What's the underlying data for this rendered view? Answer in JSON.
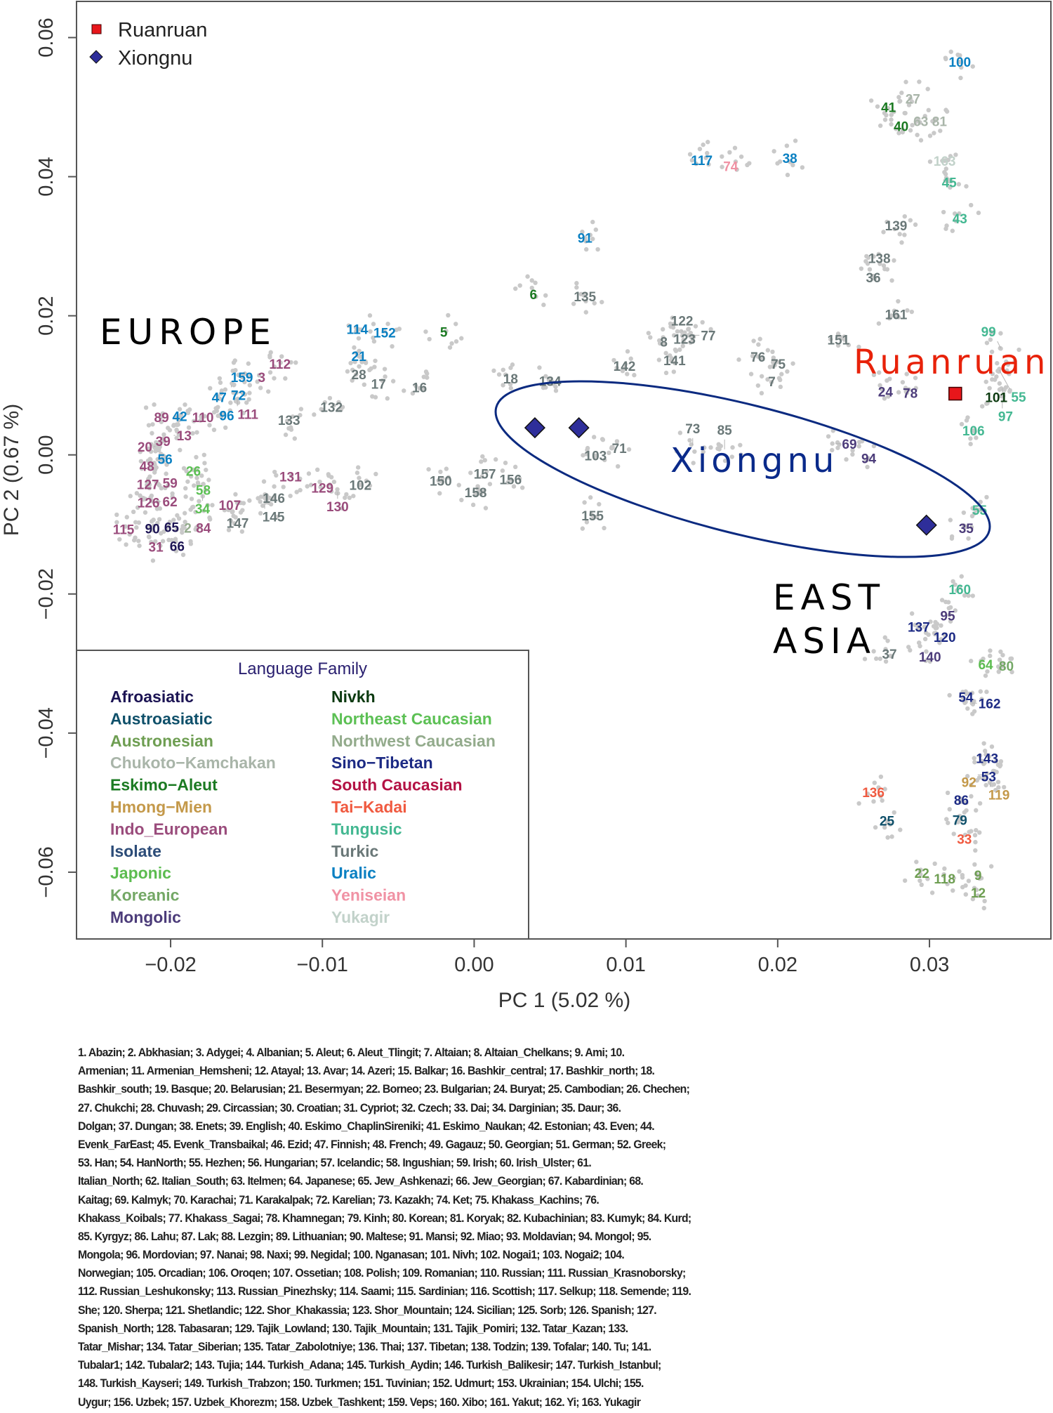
{
  "chart_data": {
    "type": "scatter",
    "xlabel": "PC 1 (5.02 %)",
    "ylabel": "PC 2 (0.67 %)",
    "xlim": [
      -0.0262,
      0.038
    ],
    "ylim": [
      -0.0696,
      0.0652
    ],
    "grid": false,
    "x_ticks": [
      -0.02,
      -0.01,
      0.0,
      0.01,
      0.02,
      0.03
    ],
    "x_tick_labels": [
      "−0.02",
      "−0.01",
      "0.00",
      "0.01",
      "0.02",
      "0.03"
    ],
    "y_ticks": [
      0.06,
      0.04,
      0.02,
      0.0,
      -0.02,
      -0.04,
      -0.06
    ],
    "y_tick_labels": [
      "0.06",
      "0.04",
      "0.02",
      "0.00",
      "−0.02",
      "−0.04",
      "−0.06"
    ],
    "marker_legend": {
      "placement": "top-left",
      "entries": [
        {
          "name": "Ruanruan",
          "shape": "square",
          "color": "#e8161b"
        },
        {
          "name": "Xiongnu",
          "shape": "diamond",
          "color": "#2e2e9a"
        }
      ]
    },
    "samples": [
      {
        "group": "Ruanruan",
        "x": 0.0317,
        "y": 0.0088
      },
      {
        "group": "Xiongnu",
        "x": 0.004,
        "y": 0.0039
      },
      {
        "group": "Xiongnu",
        "x": 0.0069,
        "y": 0.0039
      },
      {
        "group": "Xiongnu",
        "x": 0.0298,
        "y": -0.0101
      }
    ],
    "annotations": [
      {
        "text": "EUROPE",
        "color": "#000000"
      },
      {
        "text": "Ruanruan",
        "color": "#e8220a"
      },
      {
        "text": "Xiongnu",
        "color": "#0a2a8a"
      },
      {
        "text": "EAST",
        "color": "#000000"
      },
      {
        "text": "ASIA",
        "color": "#000000"
      }
    ],
    "family_legend": {
      "title": "Language Family",
      "placement": "bottom-left",
      "families": [
        {
          "name": "Afroasiatic",
          "color": "#1c1454"
        },
        {
          "name": "Austroasiatic",
          "color": "#0f506a"
        },
        {
          "name": "Austronesian",
          "color": "#6e9e52"
        },
        {
          "name": "Chukoto−Kamchakan",
          "color": "#a9b5a9"
        },
        {
          "name": "Eskimo−Aleut",
          "color": "#1b7a22"
        },
        {
          "name": "Hmong−Mien",
          "color": "#c4994a"
        },
        {
          "name": "Indo_European",
          "color": "#9a4c7c"
        },
        {
          "name": "Isolate",
          "color": "#2c4c78"
        },
        {
          "name": "Japonic",
          "color": "#5cbc50"
        },
        {
          "name": "Koreanic",
          "color": "#74a866"
        },
        {
          "name": "Mongolic",
          "color": "#4c3c7a"
        },
        {
          "name": "Nivkh",
          "color": "#0c3a10"
        },
        {
          "name": "Northeast Caucasian",
          "color": "#5cc054"
        },
        {
          "name": "Northwest Caucasian",
          "color": "#93ab8c"
        },
        {
          "name": "Sino−Tibetan",
          "color": "#1c2a84"
        },
        {
          "name": "South Caucasian",
          "color": "#b31244"
        },
        {
          "name": "Tai−Kadai",
          "color": "#f05a40"
        },
        {
          "name": "Tungusic",
          "color": "#44b892"
        },
        {
          "name": "Turkic",
          "color": "#6a7878"
        },
        {
          "name": "Uralic",
          "color": "#0a80c2"
        },
        {
          "name": "Yeniseian",
          "color": "#f092a4"
        },
        {
          "name": "Yukagir",
          "color": "#c2d2ca"
        }
      ]
    },
    "population_labels": [
      {
        "id": "100",
        "family": "Uralic",
        "x": 0.032,
        "y": 0.0565
      },
      {
        "id": "27",
        "family": "Chukoto−Kamchakan",
        "x": 0.0289,
        "y": 0.0512
      },
      {
        "id": "41",
        "family": "Eskimo−Aleut",
        "x": 0.0273,
        "y": 0.05
      },
      {
        "id": "40",
        "family": "Eskimo−Aleut",
        "x": 0.0279,
        "y": 0.048
      },
      {
        "id": "63",
        "family": "Chukoto−Kamchakan",
        "x": 0.0292,
        "y": 0.048
      },
      {
        "id": "81",
        "family": "Chukoto−Kamchakan",
        "x": 0.0302,
        "y": 0.048
      },
      {
        "id": "163",
        "family": "Yukagir",
        "x": 0.031,
        "y": 0.0423
      },
      {
        "id": "45",
        "family": "Tungusic",
        "x": 0.0313,
        "y": 0.0392
      },
      {
        "id": "43",
        "family": "Tungusic",
        "x": 0.032,
        "y": 0.034
      },
      {
        "id": "139",
        "family": "Turkic",
        "x": 0.0278,
        "y": 0.033
      },
      {
        "id": "138",
        "family": "Turkic",
        "x": 0.0267,
        "y": 0.0283
      },
      {
        "id": "36",
        "family": "Turkic",
        "x": 0.0263,
        "y": 0.0255
      },
      {
        "id": "161",
        "family": "Turkic",
        "x": 0.0278,
        "y": 0.0202
      },
      {
        "id": "151",
        "family": "Turkic",
        "x": 0.0242,
        "y": 0.0168
      },
      {
        "id": "117",
        "family": "Uralic",
        "x": 0.015,
        "y": 0.0424
      },
      {
        "id": "74",
        "family": "Yeniseian",
        "x": 0.0169,
        "y": 0.0415
      },
      {
        "id": "38",
        "family": "Uralic",
        "x": 0.0208,
        "y": 0.0427
      },
      {
        "id": "91",
        "family": "Uralic",
        "x": 0.0073,
        "y": 0.0312
      },
      {
        "id": "6",
        "family": "Eskimo−Aleut",
        "x": 0.0039,
        "y": 0.0231
      },
      {
        "id": "135",
        "family": "Turkic",
        "x": 0.0073,
        "y": 0.0228
      },
      {
        "id": "5",
        "family": "Eskimo−Aleut",
        "x": -0.002,
        "y": 0.0177
      },
      {
        "id": "114",
        "family": "Uralic",
        "x": -0.0077,
        "y": 0.0181
      },
      {
        "id": "152",
        "family": "Uralic",
        "x": -0.0059,
        "y": 0.0176
      },
      {
        "id": "21",
        "family": "Uralic",
        "x": -0.0076,
        "y": 0.0142
      },
      {
        "id": "28",
        "family": "Turkic",
        "x": -0.0076,
        "y": 0.0128
      },
      {
        "id": "17",
        "family": "Turkic",
        "x": -0.0063,
        "y": 0.0102
      },
      {
        "id": "16",
        "family": "Turkic",
        "x": -0.0036,
        "y": 0.0097
      },
      {
        "id": "18",
        "family": "Turkic",
        "x": 0.0024,
        "y": 0.011
      },
      {
        "id": "134",
        "family": "Turkic",
        "x": 0.005,
        "y": 0.0106
      },
      {
        "id": "142",
        "family": "Turkic",
        "x": 0.0099,
        "y": 0.0128
      },
      {
        "id": "8",
        "family": "Turkic",
        "x": 0.0125,
        "y": 0.0163
      },
      {
        "id": "123",
        "family": "Turkic",
        "x": 0.0134,
        "y": 0.0167
      },
      {
        "id": "122",
        "family": "Turkic",
        "x": 0.0137,
        "y": 0.0177
      },
      {
        "id": "77",
        "family": "Turkic",
        "x": 0.0145,
        "y": 0.0172
      },
      {
        "id": "141",
        "family": "Turkic",
        "x": 0.013,
        "y": 0.0138
      },
      {
        "id": "76",
        "family": "Turkic",
        "x": 0.0187,
        "y": 0.0141
      },
      {
        "id": "75",
        "family": "Turkic",
        "x": 0.0198,
        "y": 0.0131
      },
      {
        "id": "7",
        "family": "Turkic",
        "x": 0.0195,
        "y": 0.0109
      },
      {
        "id": "24",
        "family": "Mongolic",
        "x": 0.0269,
        "y": 0.0093
      },
      {
        "id": "78",
        "family": "Mongolic",
        "x": 0.0285,
        "y": 0.0096
      },
      {
        "id": "101",
        "family": "Nivkh",
        "x": 0.0344,
        "y": 0.0083
      },
      {
        "id": "99",
        "family": "Tungusic",
        "x": 0.0347,
        "y": 0.0153
      },
      {
        "id": "55",
        "family": "Tungusic",
        "x": 0.0346,
        "y": 0.0122
      },
      {
        "id": "97",
        "family": "Tungusic",
        "x": 0.0348,
        "y": 0.0096
      },
      {
        "id": "106",
        "family": "Tungusic",
        "x": 0.0329,
        "y": 0.0035
      },
      {
        "id": "69",
        "family": "Mongolic",
        "x": 0.0238,
        "y": 0.0016
      },
      {
        "id": "94",
        "family": "Mongolic",
        "x": 0.026,
        "y": -0.0005
      },
      {
        "id": "55",
        "family": "Tungusic",
        "x": 0.0333,
        "y": -0.0079
      },
      {
        "id": "35",
        "family": "Mongolic",
        "x": 0.0323,
        "y": -0.0102
      },
      {
        "id": "103",
        "family": "Turkic",
        "x": 0.008,
        "y": -0.0001
      },
      {
        "id": "71",
        "family": "Turkic",
        "x": 0.0091,
        "y": 0.001
      },
      {
        "id": "73",
        "family": "Turkic",
        "x": 0.0144,
        "y": 0.0014
      },
      {
        "id": "85",
        "family": "Turkic",
        "x": 0.0165,
        "y": 0.0008
      },
      {
        "id": "155",
        "family": "Turkic",
        "x": 0.0078,
        "y": -0.0087
      },
      {
        "id": "150",
        "family": "Turkic",
        "x": -0.0022,
        "y": -0.0037
      },
      {
        "id": "157",
        "family": "Turkic",
        "x": 0.0007,
        "y": -0.0027
      },
      {
        "id": "156",
        "family": "Turkic",
        "x": 0.0024,
        "y": -0.0035
      },
      {
        "id": "158",
        "family": "Turkic",
        "x": 0.0001,
        "y": -0.0054
      },
      {
        "id": "102",
        "family": "Turkic",
        "x": -0.0075,
        "y": -0.0043
      },
      {
        "id": "129",
        "family": "Indo_European",
        "x": -0.01,
        "y": -0.0047
      },
      {
        "id": "130",
        "family": "Indo_European",
        "x": -0.009,
        "y": -0.0054
      },
      {
        "id": "131",
        "family": "Indo_European",
        "x": -0.0121,
        "y": -0.0031
      },
      {
        "id": "146",
        "family": "Turkic",
        "x": -0.0132,
        "y": -0.0062
      },
      {
        "id": "145",
        "family": "Turkic",
        "x": -0.0138,
        "y": -0.0071
      },
      {
        "id": "132",
        "family": "Turkic",
        "x": -0.0094,
        "y": 0.0069
      },
      {
        "id": "133",
        "family": "Turkic",
        "x": -0.0122,
        "y": 0.005
      },
      {
        "id": "112",
        "family": "Indo_European",
        "x": -0.0128,
        "y": 0.0131
      },
      {
        "id": "159",
        "family": "Uralic",
        "x": -0.0153,
        "y": 0.0112
      },
      {
        "id": "3",
        "family": "Indo_European",
        "x": -0.014,
        "y": 0.0112
      },
      {
        "id": "72",
        "family": "Uralic",
        "x": -0.016,
        "y": 0.01
      },
      {
        "id": "47",
        "family": "Uralic",
        "x": -0.0168,
        "y": 0.0083
      },
      {
        "id": "111",
        "family": "Indo_European",
        "x": -0.0156,
        "y": 0.008
      },
      {
        "id": "96",
        "family": "Uralic",
        "x": -0.0165,
        "y": 0.0059
      },
      {
        "id": "89",
        "family": "Indo_European",
        "x": -0.0206,
        "y": 0.0054
      },
      {
        "id": "42",
        "family": "Uralic",
        "x": -0.0194,
        "y": 0.0056
      },
      {
        "id": "110",
        "family": "Indo_European",
        "x": -0.0181,
        "y": 0.0054
      },
      {
        "id": "39",
        "family": "Indo_European",
        "x": -0.0205,
        "y": 0.002
      },
      {
        "id": "13",
        "family": "Indo_European",
        "x": -0.0198,
        "y": 0.0028
      },
      {
        "id": "20",
        "family": "Indo_European",
        "x": -0.021,
        "y": 0.0012
      },
      {
        "id": "56",
        "family": "Uralic",
        "x": -0.0206,
        "y": 0.0001
      },
      {
        "id": "48",
        "family": "Indo_European",
        "x": -0.0211,
        "y": -0.0016
      },
      {
        "id": "127",
        "family": "Indo_European",
        "x": -0.0215,
        "y": -0.0034
      },
      {
        "id": "59",
        "family": "Indo_European",
        "x": -0.0205,
        "y": -0.004
      },
      {
        "id": "126",
        "family": "Indo_European",
        "x": -0.0218,
        "y": -0.0058
      },
      {
        "id": "62",
        "family": "Indo_European",
        "x": -0.0212,
        "y": -0.0067
      },
      {
        "id": "26",
        "family": "Northeast Caucasian",
        "x": -0.0185,
        "y": -0.0023
      },
      {
        "id": "58",
        "family": "Northeast Caucasian",
        "x": -0.0182,
        "y": -0.004
      },
      {
        "id": "34",
        "family": "Northeast Caucasian",
        "x": -0.0179,
        "y": -0.0057
      },
      {
        "id": "107",
        "family": "Indo_European",
        "x": -0.0161,
        "y": -0.0072
      },
      {
        "id": "147",
        "family": "Turkic",
        "x": -0.0157,
        "y": -0.0094
      },
      {
        "id": "115",
        "family": "Indo_European",
        "x": -0.0231,
        "y": -0.0107
      },
      {
        "id": "90",
        "family": "Afroasiatic",
        "x": -0.0212,
        "y": -0.0106
      },
      {
        "id": "65",
        "family": "Afroasiatic",
        "x": -0.0204,
        "y": -0.0104
      },
      {
        "id": "31",
        "family": "Indo_European",
        "x": -0.0212,
        "y": -0.0125
      },
      {
        "id": "66",
        "family": "Afroasiatic",
        "x": -0.0198,
        "y": -0.0124
      },
      {
        "id": "2",
        "family": "Northwest Caucasian",
        "x": -0.0191,
        "y": -0.0105
      },
      {
        "id": "84",
        "family": "Indo_European",
        "x": -0.0183,
        "y": -0.0105
      },
      {
        "id": "160",
        "family": "Tungusic",
        "x": 0.032,
        "y": -0.0193
      },
      {
        "id": "95",
        "family": "Mongolic",
        "x": 0.0312,
        "y": -0.0231
      },
      {
        "id": "137",
        "family": "Sino−Tibetan",
        "x": 0.0293,
        "y": -0.0247
      },
      {
        "id": "120",
        "family": "Sino−Tibetan",
        "x": 0.0304,
        "y": -0.0256
      },
      {
        "id": "37",
        "family": "Turkic",
        "x": 0.0269,
        "y": -0.0286
      },
      {
        "id": "140",
        "family": "Mongolic",
        "x": 0.0298,
        "y": -0.0283
      },
      {
        "id": "64",
        "family": "Japonic",
        "x": 0.0337,
        "y": -0.0301
      },
      {
        "id": "80",
        "family": "Koreanic",
        "x": 0.0346,
        "y": -0.0303
      },
      {
        "id": "54",
        "family": "Sino−Tibetan",
        "x": 0.0324,
        "y": -0.0348
      },
      {
        "id": "162",
        "family": "Sino−Tibetan",
        "x": 0.0328,
        "y": -0.0357
      },
      {
        "id": "143",
        "family": "Sino−Tibetan",
        "x": 0.0338,
        "y": -0.0436
      },
      {
        "id": "53",
        "family": "Sino−Tibetan",
        "x": 0.0339,
        "y": -0.045
      },
      {
        "id": "92",
        "family": "Hmong−Mien",
        "x": 0.0336,
        "y": -0.046
      },
      {
        "id": "119",
        "family": "Hmong−Mien",
        "x": 0.034,
        "y": -0.0471
      },
      {
        "id": "136",
        "family": "Tai−Kadai",
        "x": 0.0263,
        "y": -0.0485
      },
      {
        "id": "86",
        "family": "Sino−Tibetan",
        "x": 0.0321,
        "y": -0.0496
      },
      {
        "id": "25",
        "family": "Austroasiatic",
        "x": 0.0272,
        "y": -0.0526
      },
      {
        "id": "79",
        "family": "Austroasiatic",
        "x": 0.032,
        "y": -0.0525
      },
      {
        "id": "33",
        "family": "Tai−Kadai",
        "x": 0.0323,
        "y": -0.0552
      },
      {
        "id": "22",
        "family": "Austronesian",
        "x": 0.0295,
        "y": -0.0601
      },
      {
        "id": "118",
        "family": "Austronesian",
        "x": 0.031,
        "y": -0.0609
      },
      {
        "id": "9",
        "family": "Austronesian",
        "x": 0.0332,
        "y": -0.0604
      },
      {
        "id": "12",
        "family": "Austronesian",
        "x": 0.0331,
        "y": -0.0626
      }
    ]
  },
  "caption_lines": [
    "1. Abazin; 2. Abkhasian; 3. Adygei; 4. Albanian; 5. Aleut; 6. Aleut_Tlingit; 7. Altaian; 8. Altaian_Chelkans; 9. Ami; 10.",
    "Armenian; 11. Armenian_Hemsheni; 12. Atayal; 13. Avar; 14. Azeri; 15. Balkar; 16. Bashkir_central; 17. Bashkir_north; 18.",
    "Bashkir_south; 19. Basque; 20. Belarusian; 21. Besermyan; 22. Borneo; 23. Bulgarian; 24. Buryat; 25. Cambodian; 26. Chechen;",
    "27. Chukchi; 28. Chuvash; 29. Circassian; 30. Croatian; 31. Cypriot; 32. Czech; 33. Dai; 34. Darginian; 35. Daur; 36.",
    "Dolgan; 37. Dungan; 38. Enets; 39. English; 40. Eskimo_ChaplinSireniki; 41. Eskimo_Naukan; 42. Estonian; 43. Even; 44.",
    "Evenk_FarEast; 45. Evenk_Transbaikal; 46. Ezid; 47. Finnish; 48. French; 49. Gagauz; 50. Georgian; 51. German; 52. Greek;",
    "53. Han; 54. HanNorth; 55. Hezhen; 56. Hungarian; 57. Icelandic; 58. Ingushian; 59. Irish; 60. Irish_Ulster; 61.",
    "Italian_North; 62. Italian_South; 63. Itelmen; 64. Japanese; 65. Jew_Ashkenazi; 66. Jew_Georgian; 67. Kabardinian; 68.",
    "Kaitag; 69. Kalmyk; 70. Karachai; 71. Karakalpak; 72. Karelian; 73. Kazakh; 74. Ket; 75. Khakass_Kachins; 76.",
    "Khakass_Koibals; 77. Khakass_Sagai; 78. Khamnegan; 79. Kinh; 80. Korean; 81. Koryak; 82. Kubachinian; 83. Kumyk; 84. Kurd;",
    "85. Kyrgyz; 86. Lahu; 87. Lak; 88. Lezgin; 89. Lithuanian; 90. Maltese; 91. Mansi; 92. Miao; 93. Moldavian; 94. Mongol; 95.",
    "Mongola; 96. Mordovian; 97. Nanai; 98. Naxi; 99. Negidal; 100. Nganasan; 101. Nivh; 102. Nogai1; 103. Nogai2; 104.",
    "Norwegian; 105. Orcadian; 106. Oroqen; 107. Ossetian; 108. Polish; 109. Romanian; 110. Russian; 111. Russian_Krasnoborsky;",
    "112. Russian_Leshukonsky; 113. Russian_Pinezhsky; 114. Saami; 115. Sardinian; 116. Scottish; 117. Selkup; 118. Semende; 119.",
    "She; 120. Sherpa; 121. Shetlandic; 122. Shor_Khakassia; 123. Shor_Mountain; 124. Sicilian; 125. Sorb; 126. Spanish; 127.",
    "Spanish_North; 128. Tabasaran; 129. Tajik_Lowland; 130. Tajik_Mountain; 131. Tajik_Pomiri; 132. Tatar_Kazan; 133.",
    "Tatar_Mishar; 134. Tatar_Siberian; 135. Tatar_Zabolotniye; 136. Thai; 137. Tibetan; 138. Todzin; 139. Tofalar; 140. Tu; 141.",
    "Tubalar1; 142. Tubalar2; 143. Tujia; 144. Turkish_Adana; 145. Turkish_Aydin; 146. Turkish_Balikesir; 147. Turkish_Istanbul;",
    "148. Turkish_Kayseri; 149. Turkish_Trabzon; 150. Turkmen; 151. Tuvinian; 152. Udmurt; 153. Ukrainian; 154. Ulchi; 155.",
    "Uygur; 156. Uzbek; 157. Uzbek_Khorezm; 158. Uzbek_Tashkent; 159. Veps; 160. Xibo; 161. Yakut; 162. Yi; 163. Yukagir"
  ]
}
